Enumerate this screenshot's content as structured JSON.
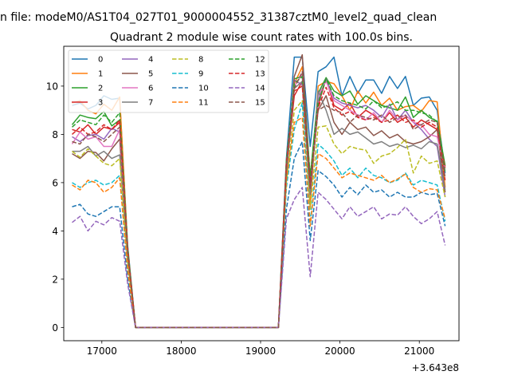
{
  "suptitle": "n file: modeM0/AS1T04_027T01_9000004552_31387cztM0_level2_quad_clean",
  "chart_data": {
    "type": "line",
    "title": "Quadrant 2 module wise count rates with 100.0s bins.",
    "xlabel": "",
    "ylabel": "",
    "offset_text": "+3.643e8",
    "xlim": [
      16520,
      21500
    ],
    "ylim": [
      -0.55,
      11.65
    ],
    "x_ticks": [
      17000,
      18000,
      19000,
      20000,
      21000
    ],
    "x_tick_labels": [
      "17000",
      "18000",
      "19000",
      "20000",
      "21000"
    ],
    "y_ticks": [
      0,
      2,
      4,
      6,
      8,
      10
    ],
    "y_tick_labels": [
      "0",
      "2",
      "4",
      "6",
      "8",
      "10"
    ],
    "grid": false,
    "legend": {
      "placement": "top-left",
      "columns": 4
    },
    "x": [
      16625,
      16725,
      16825,
      16925,
      17025,
      17125,
      17225,
      17325,
      17425,
      17525,
      17625,
      17725,
      17825,
      17925,
      18025,
      18125,
      18225,
      18325,
      18425,
      18525,
      18625,
      18725,
      18825,
      18925,
      19025,
      19125,
      19225,
      19325,
      19425,
      19525,
      19625,
      19725,
      19825,
      19925,
      20025,
      20125,
      20225,
      20325,
      20425,
      20525,
      20625,
      20725,
      20825,
      20925,
      21025,
      21125,
      21225,
      21325
    ],
    "series": [
      {
        "name": "0",
        "color": "#1f77b4",
        "dash": "solid",
        "values": [
          9.2,
          9.3,
          9.05,
          9.2,
          9.6,
          9.45,
          9.5,
          3.4,
          0,
          0,
          0,
          0,
          0,
          0,
          0,
          0,
          0,
          0,
          0,
          0,
          0,
          0,
          0,
          0,
          0,
          0,
          0,
          7.0,
          11.2,
          11.2,
          7.5,
          10.6,
          10.8,
          11.2,
          9.6,
          10.4,
          9.7,
          10.25,
          10.25,
          9.7,
          10.4,
          9.9,
          10.4,
          9.2,
          9.5,
          9.55,
          9.0,
          6.4
        ]
      },
      {
        "name": "1",
        "color": "#ff7f0e",
        "dash": "solid",
        "values": [
          9.3,
          9.4,
          9.0,
          8.85,
          9.25,
          9.0,
          9.55,
          3.3,
          0,
          0,
          0,
          0,
          0,
          0,
          0,
          0,
          0,
          0,
          0,
          0,
          0,
          0,
          0,
          0,
          0,
          0,
          0,
          6.8,
          10.1,
          10.8,
          5.0,
          10.0,
          10.2,
          10.1,
          9.6,
          9.0,
          9.8,
          9.3,
          9.75,
          9.2,
          9.5,
          9.0,
          9.15,
          9.2,
          8.95,
          9.4,
          9.35,
          5.8
        ]
      },
      {
        "name": "2",
        "color": "#2ca02c",
        "dash": "solid",
        "values": [
          8.4,
          8.8,
          8.7,
          8.65,
          8.95,
          8.35,
          8.6,
          3.2,
          0,
          0,
          0,
          0,
          0,
          0,
          0,
          0,
          0,
          0,
          0,
          0,
          0,
          0,
          0,
          0,
          0,
          0,
          0,
          6.6,
          10.3,
          10.4,
          6.2,
          9.7,
          10.35,
          9.8,
          9.6,
          9.8,
          9.25,
          9.6,
          9.4,
          9.2,
          9.1,
          9.0,
          9.55,
          8.7,
          9.0,
          8.7,
          8.55,
          6.7
        ]
      },
      {
        "name": "3",
        "color": "#d62728",
        "dash": "solid",
        "values": [
          8.2,
          8.1,
          8.4,
          8.0,
          8.3,
          8.2,
          8.5,
          3.1,
          0,
          0,
          0,
          0,
          0,
          0,
          0,
          0,
          0,
          0,
          0,
          0,
          0,
          0,
          0,
          0,
          0,
          0,
          0,
          6.5,
          9.6,
          10.2,
          5.8,
          9.2,
          10.3,
          9.2,
          9.0,
          9.3,
          8.7,
          9.0,
          8.8,
          8.5,
          8.9,
          8.5,
          8.7,
          8.3,
          8.6,
          8.4,
          8.2,
          6.6
        ]
      },
      {
        "name": "4",
        "color": "#9467bd",
        "dash": "solid",
        "values": [
          7.9,
          7.7,
          7.95,
          8.0,
          7.8,
          8.25,
          8.1,
          3.0,
          0,
          0,
          0,
          0,
          0,
          0,
          0,
          0,
          0,
          0,
          0,
          0,
          0,
          0,
          0,
          0,
          0,
          0,
          0,
          6.6,
          10.25,
          10.05,
          5.5,
          9.4,
          10.3,
          9.5,
          9.3,
          9.2,
          9.1,
          9.2,
          9.0,
          8.7,
          9.25,
          8.6,
          9.0,
          8.5,
          8.2,
          7.8,
          7.5,
          5.4
        ]
      },
      {
        "name": "5",
        "color": "#8c564b",
        "dash": "solid",
        "values": [
          7.2,
          7.0,
          7.3,
          7.25,
          6.9,
          7.4,
          7.8,
          2.9,
          0,
          0,
          0,
          0,
          0,
          0,
          0,
          0,
          0,
          0,
          0,
          0,
          0,
          0,
          0,
          0,
          0,
          0,
          0,
          6.3,
          10.4,
          11.3,
          6.1,
          9.0,
          9.6,
          8.5,
          8.0,
          8.5,
          8.2,
          8.3,
          7.95,
          8.15,
          7.85,
          8.0,
          7.7,
          7.6,
          7.7,
          7.9,
          8.2,
          5.6
        ]
      },
      {
        "name": "6",
        "color": "#e377c2",
        "dash": "solid",
        "values": [
          7.6,
          8.1,
          7.8,
          7.9,
          7.5,
          7.5,
          8.2,
          3.0,
          0,
          0,
          0,
          0,
          0,
          0,
          0,
          0,
          0,
          0,
          0,
          0,
          0,
          0,
          0,
          0,
          0,
          0,
          0,
          6.7,
          10.0,
          10.5,
          5.6,
          9.6,
          10.2,
          9.4,
          9.2,
          9.0,
          8.8,
          8.6,
          8.9,
          8.5,
          9.0,
          8.6,
          8.8,
          8.5,
          8.4,
          8.0,
          7.9,
          6.5
        ]
      },
      {
        "name": "7",
        "color": "#7f7f7f",
        "dash": "solid",
        "values": [
          7.3,
          7.3,
          7.5,
          7.1,
          7.3,
          7.0,
          7.15,
          2.85,
          0,
          0,
          0,
          0,
          0,
          0,
          0,
          0,
          0,
          0,
          0,
          0,
          0,
          0,
          0,
          0,
          0,
          0,
          0,
          6.4,
          9.9,
          10.2,
          5.5,
          9.8,
          9.0,
          8.0,
          8.25,
          8.0,
          8.1,
          7.85,
          7.6,
          7.7,
          7.5,
          7.6,
          7.45,
          7.55,
          7.4,
          7.7,
          7.6,
          5.7
        ]
      },
      {
        "name": "8",
        "color": "#bcbd22",
        "dash": "dashed",
        "values": [
          7.3,
          7.05,
          7.4,
          7.1,
          6.8,
          6.7,
          7.0,
          2.7,
          0,
          0,
          0,
          0,
          0,
          0,
          0,
          0,
          0,
          0,
          0,
          0,
          0,
          0,
          0,
          0,
          0,
          0,
          0,
          6.0,
          9.0,
          9.4,
          4.9,
          8.3,
          8.35,
          7.6,
          7.2,
          7.5,
          7.4,
          7.35,
          6.8,
          7.1,
          7.2,
          7.45,
          7.8,
          6.4,
          7.1,
          6.8,
          6.9,
          5.4
        ]
      },
      {
        "name": "9",
        "color": "#17becf",
        "dash": "dashed",
        "values": [
          6.0,
          5.8,
          6.0,
          6.1,
          5.9,
          6.0,
          6.3,
          2.4,
          0,
          0,
          0,
          0,
          0,
          0,
          0,
          0,
          0,
          0,
          0,
          0,
          0,
          0,
          0,
          0,
          0,
          0,
          0,
          5.8,
          8.2,
          9.3,
          4.3,
          7.6,
          7.3,
          6.9,
          6.3,
          6.6,
          6.2,
          6.6,
          6.3,
          6.2,
          6.0,
          6.1,
          6.4,
          5.9,
          6.1,
          6.0,
          5.9,
          4.4
        ]
      },
      {
        "name": "10",
        "color": "#1f77b4",
        "dash": "dashed",
        "values": [
          5.0,
          5.1,
          4.7,
          4.6,
          4.8,
          5.0,
          5.0,
          2.0,
          0,
          0,
          0,
          0,
          0,
          0,
          0,
          0,
          0,
          0,
          0,
          0,
          0,
          0,
          0,
          0,
          0,
          0,
          0,
          4.9,
          7.0,
          7.7,
          3.6,
          6.5,
          6.25,
          5.9,
          5.4,
          5.8,
          5.5,
          5.9,
          5.6,
          5.7,
          5.4,
          5.6,
          5.4,
          5.4,
          5.6,
          5.5,
          5.55,
          4.2
        ]
      },
      {
        "name": "11",
        "color": "#ff7f0e",
        "dash": "dashed",
        "values": [
          5.9,
          5.7,
          6.1,
          6.0,
          5.6,
          5.8,
          6.2,
          2.4,
          0,
          0,
          0,
          0,
          0,
          0,
          0,
          0,
          0,
          0,
          0,
          0,
          0,
          0,
          0,
          0,
          0,
          0,
          0,
          6.1,
          8.5,
          8.7,
          4.2,
          7.2,
          7.0,
          6.6,
          6.2,
          6.4,
          6.3,
          6.2,
          6.1,
          6.3,
          6.0,
          6.15,
          6.35,
          5.8,
          5.6,
          5.75,
          5.7,
          4.5
        ]
      },
      {
        "name": "12",
        "color": "#2ca02c",
        "dash": "dashed",
        "values": [
          8.3,
          8.6,
          8.5,
          8.4,
          8.8,
          8.5,
          8.9,
          3.3,
          0,
          0,
          0,
          0,
          0,
          0,
          0,
          0,
          0,
          0,
          0,
          0,
          0,
          0,
          0,
          0,
          0,
          0,
          0,
          6.9,
          10.1,
          10.4,
          6.3,
          9.3,
          10.3,
          9.6,
          9.4,
          9.3,
          9.2,
          9.05,
          9.4,
          9.1,
          9.2,
          9.35,
          9.0,
          9.0,
          8.9,
          8.8,
          8.5,
          6.4
        ]
      },
      {
        "name": "13",
        "color": "#d62728",
        "dash": "dashed",
        "values": [
          8.0,
          8.3,
          8.0,
          8.1,
          8.4,
          8.2,
          8.6,
          3.2,
          0,
          0,
          0,
          0,
          0,
          0,
          0,
          0,
          0,
          0,
          0,
          0,
          0,
          0,
          0,
          0,
          0,
          0,
          0,
          6.8,
          9.8,
          10.0,
          5.9,
          9.1,
          9.95,
          9.1,
          8.8,
          8.95,
          8.7,
          8.6,
          8.7,
          8.5,
          8.6,
          8.8,
          8.5,
          8.6,
          8.3,
          8.5,
          8.3,
          6.1
        ]
      },
      {
        "name": "14",
        "color": "#9467bd",
        "dash": "dashed",
        "values": [
          4.35,
          4.6,
          4.0,
          4.4,
          4.25,
          4.55,
          4.4,
          1.8,
          0,
          0,
          0,
          0,
          0,
          0,
          0,
          0,
          0,
          0,
          0,
          0,
          0,
          0,
          0,
          0,
          0,
          0,
          0,
          4.5,
          5.3,
          5.8,
          2.1,
          5.6,
          5.3,
          4.9,
          4.5,
          5.0,
          4.6,
          4.8,
          5.0,
          4.5,
          4.7,
          4.65,
          5.0,
          4.6,
          4.3,
          4.5,
          4.8,
          3.4
        ]
      },
      {
        "name": "15",
        "color": "#8c564b",
        "dash": "dashed",
        "values": [
          7.7,
          7.6,
          8.0,
          7.9,
          7.7,
          8.0,
          8.3,
          3.1,
          0,
          0,
          0,
          0,
          0,
          0,
          0,
          0,
          0,
          0,
          0,
          0,
          0,
          0,
          0,
          0,
          0,
          0,
          0,
          6.6,
          9.9,
          10.6,
          5.7,
          9.0,
          9.2,
          9.0,
          8.9,
          8.5,
          8.8,
          8.7,
          8.6,
          8.8,
          8.5,
          8.7,
          8.8,
          8.2,
          8.4,
          8.6,
          8.5,
          6.2
        ]
      }
    ]
  }
}
